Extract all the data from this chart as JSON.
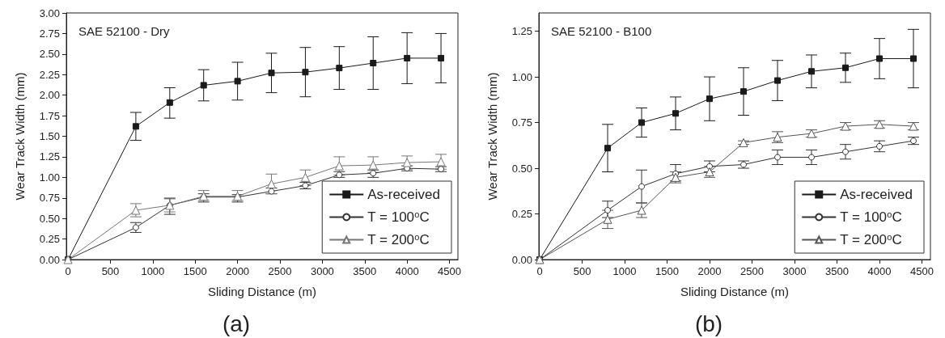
{
  "chart_data": [
    {
      "type": "line",
      "title": "SAE 52100 - Dry",
      "xlabel": "Sliding Distance (m)",
      "ylabel": "Wear Track Width (mm)",
      "annotations": [
        "(a)"
      ],
      "legend": "bottom right",
      "x": [
        0,
        800,
        1200,
        1600,
        2000,
        2400,
        2800,
        3200,
        3600,
        4000,
        4400
      ],
      "xlim": [
        -20,
        4600
      ],
      "xticks": [
        0,
        500,
        1000,
        1500,
        2000,
        2500,
        3000,
        3500,
        4000,
        4500
      ],
      "ylim": [
        0,
        3
      ],
      "yticks": [
        {
          "value": 0,
          "label": "0.00"
        },
        {
          "value": 0.25,
          "label": "0.25"
        },
        {
          "value": 0.5,
          "label": "0.50"
        },
        {
          "value": 0.75,
          "label": "0.75"
        },
        {
          "value": 1,
          "label": "1.00"
        },
        {
          "value": 1.25,
          "label": "1.25"
        },
        {
          "value": 1.5,
          "label": "1.50"
        },
        {
          "value": 1.75,
          "label": "1.75"
        },
        {
          "value": 2,
          "label": "2.00"
        },
        {
          "value": 2.25,
          "label": "2.25"
        },
        {
          "value": 2.5,
          "label": "2.50"
        },
        {
          "value": 2.75,
          "label": "2.75"
        },
        {
          "value": 3,
          "label": "3.00"
        }
      ],
      "series": [
        {
          "name": "As-received",
          "color": "#1a1a1a",
          "marker": "square",
          "values": [
            0,
            1.62,
            1.91,
            2.12,
            2.17,
            2.27,
            2.28,
            2.33,
            2.39,
            2.45,
            2.45
          ],
          "errors": [
            null,
            [
              1.45,
              1.79
            ],
            [
              1.72,
              2.09
            ],
            [
              1.93,
              2.31
            ],
            [
              1.94,
              2.4
            ],
            [
              2.03,
              2.51
            ],
            [
              1.98,
              2.58
            ],
            [
              2.07,
              2.59
            ],
            [
              2.07,
              2.71
            ],
            [
              2.14,
              2.76
            ],
            [
              2.15,
              2.75
            ]
          ]
        },
        {
          "name": "T = 100$^{o}$C",
          "color": "#333333",
          "marker": "circle",
          "values": [
            0,
            0.39,
            0.66,
            0.76,
            0.76,
            0.83,
            0.9,
            1.03,
            1.05,
            1.11,
            1.1
          ],
          "errors": [
            null,
            [
              0.33,
              0.45
            ],
            [
              0.55,
              0.74
            ],
            [
              0.7,
              0.8
            ],
            [
              0.7,
              0.79
            ],
            [
              0.8,
              0.87
            ],
            [
              0.86,
              0.94
            ],
            [
              1.0,
              1.07
            ],
            [
              1.0,
              1.09
            ],
            [
              1.08,
              1.14
            ],
            [
              1.07,
              1.13
            ]
          ]
        },
        {
          "name": "T = 200$^{o}$C",
          "color": "#777777",
          "marker": "triangle",
          "values": [
            0,
            0.6,
            0.66,
            0.77,
            0.77,
            0.92,
            1.0,
            1.14,
            1.15,
            1.18,
            1.19
          ],
          "errors": [
            null,
            [
              0.52,
              0.68
            ],
            [
              0.58,
              0.75
            ],
            [
              0.72,
              0.84
            ],
            [
              0.72,
              0.84
            ],
            [
              0.8,
              1.04
            ],
            [
              0.9,
              1.09
            ],
            [
              1.03,
              1.25
            ],
            [
              1.06,
              1.25
            ],
            [
              1.1,
              1.26
            ],
            [
              1.1,
              1.28
            ]
          ]
        }
      ]
    },
    {
      "type": "line",
      "title": "SAE 52100 - B100",
      "xlabel": "Sliding Distance (m)",
      "ylabel": "Wear Track Width (mm)",
      "annotations": [
        "(b)"
      ],
      "legend": "bottom right",
      "x": [
        0,
        800,
        1200,
        1600,
        2000,
        2400,
        2800,
        3200,
        3600,
        4000,
        4400
      ],
      "xlim": [
        -10,
        4600
      ],
      "xticks": [
        0,
        500,
        1000,
        1500,
        2000,
        2500,
        3000,
        3500,
        4000,
        4500
      ],
      "ylim": [
        0,
        1.35
      ],
      "yticks": [
        {
          "value": 0,
          "label": "0.00"
        },
        {
          "value": 0.25,
          "label": "0.25"
        },
        {
          "value": 0.5,
          "label": "0.50"
        },
        {
          "value": 0.75,
          "label": "0.75"
        },
        {
          "value": 1,
          "label": "1.00"
        },
        {
          "value": 1.25,
          "label": "1.25"
        }
      ],
      "series": [
        {
          "name": "As-received",
          "color": "#1a1a1a",
          "marker": "square",
          "values": [
            0,
            0.61,
            0.75,
            0.8,
            0.88,
            0.92,
            0.98,
            1.03,
            1.05,
            1.1,
            1.1
          ],
          "errors": [
            null,
            [
              0.48,
              0.74
            ],
            [
              0.67,
              0.83
            ],
            [
              0.71,
              0.89
            ],
            [
              0.76,
              1.0
            ],
            [
              0.79,
              1.05
            ],
            [
              0.87,
              1.09
            ],
            [
              0.94,
              1.12
            ],
            [
              0.97,
              1.13
            ],
            [
              0.99,
              1.21
            ],
            [
              0.94,
              1.26
            ]
          ]
        },
        {
          "name": "T = 100$^{o}$C",
          "color": "#333333",
          "marker": "circle",
          "values": [
            0,
            0.27,
            0.4,
            0.47,
            0.51,
            0.52,
            0.56,
            0.56,
            0.59,
            0.62,
            0.65
          ],
          "errors": [
            null,
            [
              0.23,
              0.32
            ],
            [
              0.31,
              0.49
            ],
            [
              0.43,
              0.52
            ],
            [
              0.48,
              0.54
            ],
            [
              0.5,
              0.54
            ],
            [
              0.52,
              0.6
            ],
            [
              0.52,
              0.6
            ],
            [
              0.55,
              0.63
            ],
            [
              0.59,
              0.65
            ],
            [
              0.63,
              0.67
            ]
          ]
        },
        {
          "name": "T = 200$^{o}$C",
          "color": "#555555",
          "marker": "triangle",
          "values": [
            0,
            0.22,
            0.27,
            0.45,
            0.48,
            0.64,
            0.67,
            0.69,
            0.73,
            0.74,
            0.73
          ],
          "errors": [
            null,
            [
              0.17,
              0.27
            ],
            [
              0.23,
              0.31
            ],
            [
              0.42,
              0.48
            ],
            [
              0.45,
              0.51
            ],
            [
              0.63,
              0.65
            ],
            [
              0.64,
              0.7
            ],
            [
              0.67,
              0.71
            ],
            [
              0.71,
              0.75
            ],
            [
              0.72,
              0.76
            ],
            [
              0.71,
              0.75
            ]
          ]
        }
      ]
    }
  ]
}
